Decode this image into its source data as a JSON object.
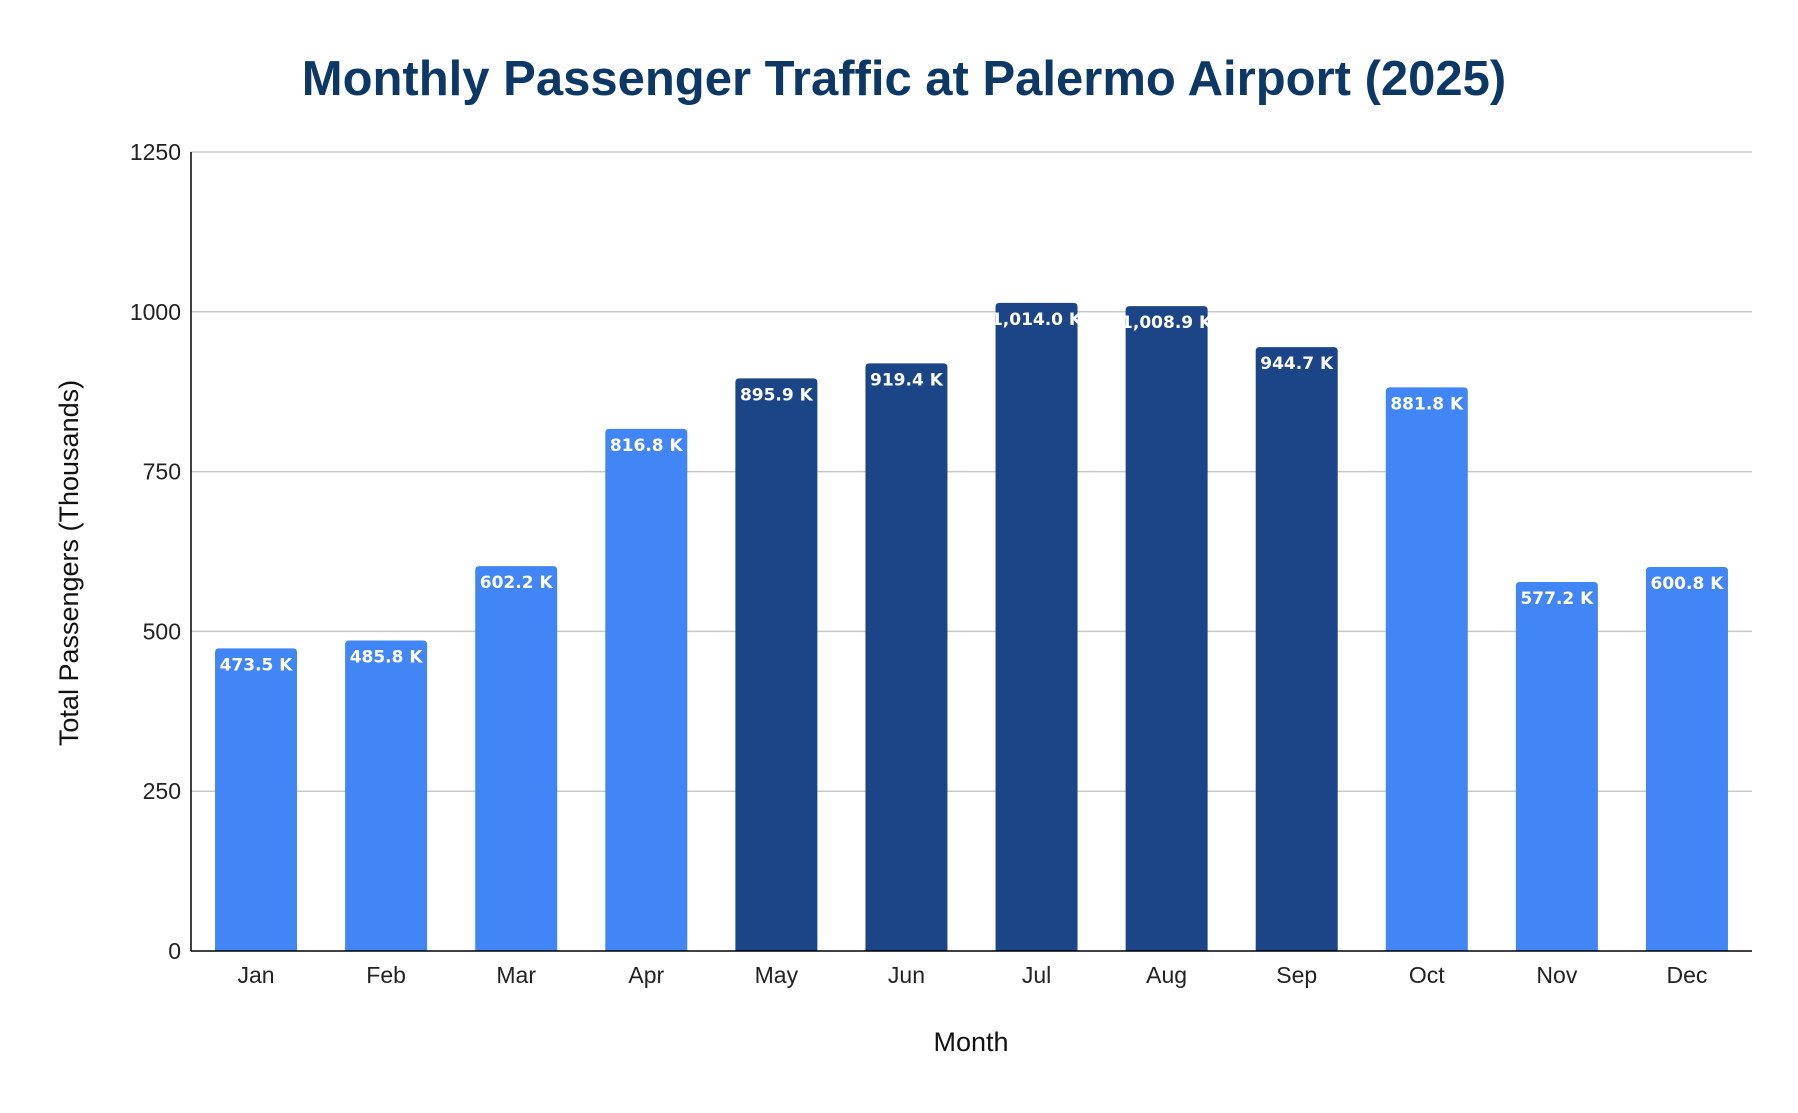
{
  "chart_data": {
    "type": "bar",
    "title": "Monthly Passenger Traffic at Palermo Airport (2025)",
    "xlabel": "Month",
    "ylabel": "Total Passengers (Thousands)",
    "ylim": [
      0,
      1250
    ],
    "yticks": [
      0,
      250,
      500,
      750,
      1000,
      1250
    ],
    "ytick_labels": [
      "0",
      "250",
      "500",
      "750",
      "1000",
      "1250"
    ],
    "grid": "horizontal",
    "legend": "none",
    "categories": [
      "Jan",
      "Feb",
      "Mar",
      "Apr",
      "May",
      "Jun",
      "Jul",
      "Aug",
      "Sep",
      "Oct",
      "Nov",
      "Dec"
    ],
    "values": [
      473.5,
      485.8,
      602.2,
      816.8,
      895.9,
      919.4,
      1014.0,
      1008.9,
      944.7,
      881.8,
      577.2,
      600.8
    ],
    "data_labels": [
      "473.5 K",
      "485.8 K",
      "602.2 K",
      "816.8 K",
      "895.9 K",
      "919.4 K",
      "1,014.0 K",
      "1,008.9 K",
      "944.7 K",
      "881.8 K",
      "577.2 K",
      "600.8 K"
    ],
    "highlighted": [
      false,
      false,
      false,
      false,
      true,
      true,
      true,
      true,
      true,
      false,
      false,
      false
    ],
    "colors": {
      "bar": "#4285f4",
      "bar_highlight": "#1c4587",
      "title": "#0d3866",
      "grid": "#c8c8c8",
      "axis": "#000000"
    }
  }
}
